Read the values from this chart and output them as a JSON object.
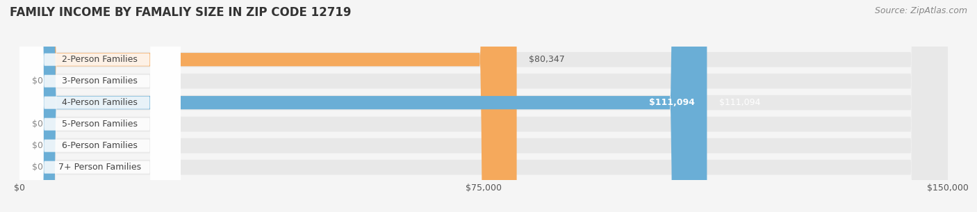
{
  "title": "FAMILY INCOME BY FAMALIY SIZE IN ZIP CODE 12719",
  "source": "Source: ZipAtlas.com",
  "categories": [
    "2-Person Families",
    "3-Person Families",
    "4-Person Families",
    "5-Person Families",
    "6-Person Families",
    "7+ Person Families"
  ],
  "values": [
    80347,
    0,
    111094,
    0,
    0,
    0
  ],
  "bar_colors": [
    "#f5a95c",
    "#f4a0a8",
    "#6aaed6",
    "#c9a8d4",
    "#6eccc4",
    "#a8b8e8"
  ],
  "label_colors": [
    "#555555",
    "#555555",
    "#ffffff",
    "#555555",
    "#555555",
    "#555555"
  ],
  "value_labels": [
    "$80,347",
    "$0",
    "$111,094",
    "$0",
    "$0",
    "$0"
  ],
  "xlim": [
    0,
    150000
  ],
  "xticks": [
    0,
    75000,
    150000
  ],
  "xticklabels": [
    "$0",
    "$75,000",
    "$150,000"
  ],
  "background_color": "#f5f5f5",
  "bar_background_color": "#e8e8e8",
  "title_fontsize": 12,
  "source_fontsize": 9,
  "label_fontsize": 9,
  "value_fontsize": 9,
  "tick_fontsize": 9,
  "bar_height": 0.62,
  "figsize": [
    14.06,
    3.05
  ],
  "dpi": 100
}
